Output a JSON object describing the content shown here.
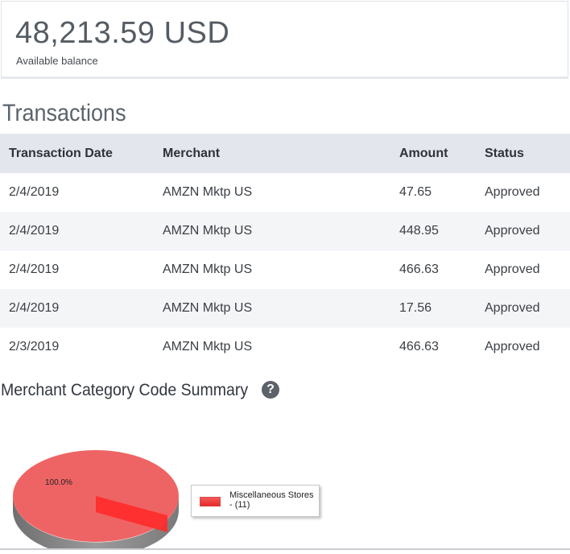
{
  "balance": {
    "amount": "48,213.59 USD",
    "label": "Available balance"
  },
  "transactions": {
    "title": "Transactions",
    "columns": [
      "Transaction Date",
      "Merchant",
      "Amount",
      "Status"
    ],
    "rows": [
      {
        "date": "2/4/2019",
        "merchant": "AMZN Mktp US",
        "amount": "47.65",
        "status": "Approved"
      },
      {
        "date": "2/4/2019",
        "merchant": "AMZN Mktp US",
        "amount": "448.95",
        "status": "Approved"
      },
      {
        "date": "2/4/2019",
        "merchant": "AMZN Mktp US",
        "amount": "466.63",
        "status": "Approved"
      },
      {
        "date": "2/4/2019",
        "merchant": "AMZN Mktp US",
        "amount": "17.56",
        "status": "Approved"
      },
      {
        "date": "2/3/2019",
        "merchant": "AMZN Mktp US",
        "amount": "466.63",
        "status": "Approved"
      }
    ]
  },
  "mcc_summary": {
    "title": "Merchant Category Code Summary",
    "help_icon": "question-circle-icon"
  },
  "chart_data": {
    "type": "pie",
    "categories": [
      "Miscellaneous Stores"
    ],
    "values": [
      11
    ],
    "slice_labels": [
      "100.0%"
    ],
    "legend": [
      "Miscellaneous Stores\n- (11)"
    ],
    "legend_position": "right",
    "colors": [
      "#ee6464"
    ]
  },
  "colors": {
    "header_bg": "#e3e6ec",
    "pie_top": "#ee6464",
    "pie_side": "#8c8c8c",
    "pie_highlight": "#ff2a2a"
  }
}
